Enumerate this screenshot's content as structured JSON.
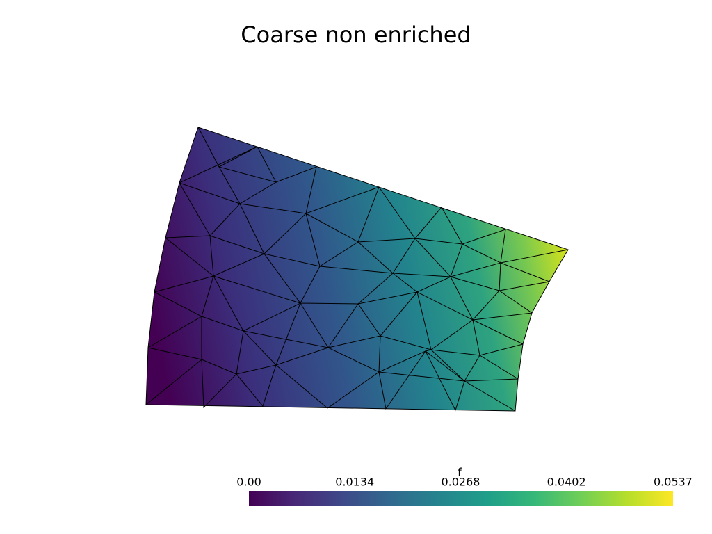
{
  "chart_data": {
    "type": "mesh",
    "title": "Coarse non enriched",
    "colorbar": {
      "title": "f",
      "clim": [
        0,
        0.0537
      ],
      "ticks": [
        {
          "value": 0,
          "label": "0.00"
        },
        0.0134,
        0.0268,
        0.0402,
        0.0537
      ]
    }
  }
}
